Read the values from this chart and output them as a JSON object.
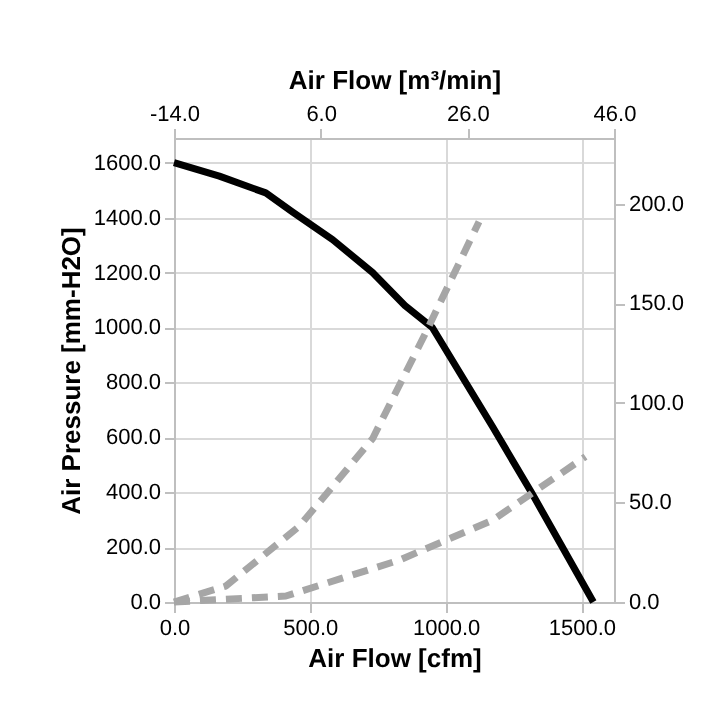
{
  "chart_data": {
    "type": "line",
    "xlabel": "Air Flow [cfm]",
    "ylabel": "Air Pressure [mm-H2O]",
    "x2label": "Air Flow [m³/min]",
    "xlim": [
      0,
      1620
    ],
    "xticks": [
      {
        "value": 0,
        "label": "0.0"
      },
      {
        "value": 500,
        "label": "500.0"
      },
      {
        "value": 1000,
        "label": "1000.0"
      },
      {
        "value": 1500,
        "label": "1500.0"
      }
    ],
    "x2lim": [
      -14,
      46
    ],
    "x2ticks": [
      {
        "value": -14,
        "label": "-14.0"
      },
      {
        "value": 6,
        "label": "6.0"
      },
      {
        "value": 26,
        "label": "26.0"
      },
      {
        "value": 46,
        "label": "46.0"
      }
    ],
    "ylim": [
      0,
      1690
    ],
    "yticks": [
      {
        "value": 0,
        "label": "0.0"
      },
      {
        "value": 200,
        "label": "200.0"
      },
      {
        "value": 400,
        "label": "400.0"
      },
      {
        "value": 600,
        "label": "600.0"
      },
      {
        "value": 800,
        "label": "800.0"
      },
      {
        "value": 1000,
        "label": "1000.0"
      },
      {
        "value": 1200,
        "label": "1200.0"
      },
      {
        "value": 1400,
        "label": "1400.0"
      },
      {
        "value": 1600,
        "label": "1600.0"
      }
    ],
    "y2lim": [
      0,
      233
    ],
    "y2ticks": [
      {
        "value": 0,
        "label": "0.0"
      },
      {
        "value": 50,
        "label": "50.0"
      },
      {
        "value": 100,
        "label": "100.0"
      },
      {
        "value": 150,
        "label": "150.0"
      },
      {
        "value": 200,
        "label": "200.0"
      }
    ],
    "grid": true,
    "marker": "none",
    "series": [
      {
        "color": "#000000",
        "line_style": "solid",
        "x": [
          0,
          167,
          338,
          437,
          584,
          731,
          850,
          951,
          1172,
          1319,
          1544
        ],
        "values": [
          1600,
          1551,
          1490,
          1420,
          1320,
          1200,
          1080,
          1000,
          640,
          394,
          0
        ]
      },
      {
        "color": "#a6a6a6",
        "line_style": "dashed",
        "axis": "y2",
        "x": [
          0,
          191,
          461,
          731,
          926,
          1123
        ],
        "values": [
          0,
          8,
          38,
          82,
          135,
          191
        ]
      },
      {
        "color": "#a6a6a6",
        "line_style": "dashed",
        "axis": "y2",
        "x": [
          0,
          412,
          829,
          1172,
          1515
        ],
        "values": [
          0,
          3,
          21,
          41,
          73
        ]
      }
    ]
  }
}
